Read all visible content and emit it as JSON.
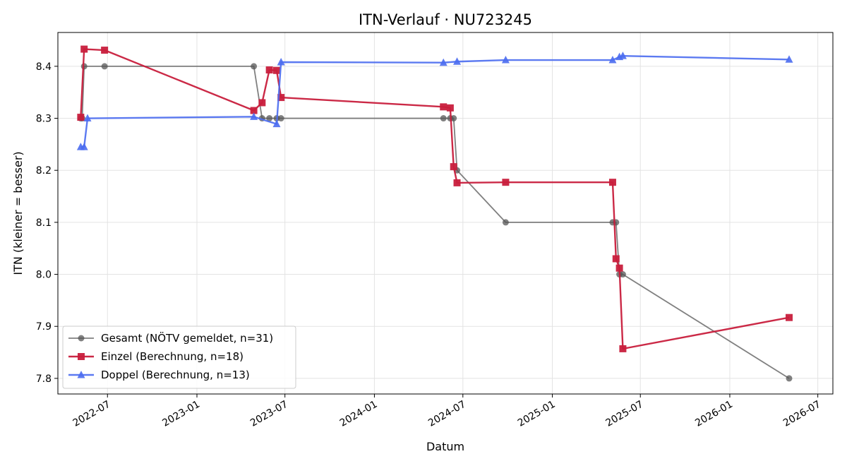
{
  "chart_data": {
    "type": "line",
    "title": "ITN-Verlauf · NU723245",
    "xlabel": "Datum",
    "ylabel": "ITN  (kleiner = besser)",
    "xlim": [
      "2022-03-21",
      "2026-08-01"
    ],
    "ylim": [
      7.77,
      8.465
    ],
    "x_ticks": [
      "2022-07-01",
      "2023-01-01",
      "2023-07-01",
      "2024-01-01",
      "2024-07-01",
      "2025-01-01",
      "2025-07-01",
      "2026-01-01",
      "2026-07-01"
    ],
    "x_tick_labels": [
      "2022-07",
      "2023-01",
      "2023-07",
      "2024-01",
      "2024-07",
      "2025-01",
      "2025-07",
      "2026-01",
      "2026-07"
    ],
    "y_ticks": [
      7.8,
      7.9,
      8.0,
      8.1,
      8.2,
      8.3,
      8.4
    ],
    "y_tick_labels": [
      "7.8",
      "7.9",
      "8.0",
      "8.1",
      "8.2",
      "8.3",
      "8.4"
    ],
    "grid": true,
    "legend_position": "lower-left",
    "series": [
      {
        "name": "Gesamt (NÖTV gemeldet, n=31)",
        "color": "#555555",
        "marker": "circle",
        "points": [
          [
            "2022-05-07",
            8.3
          ],
          [
            "2022-05-10",
            8.3
          ],
          [
            "2022-05-14",
            8.4
          ],
          [
            "2022-06-25",
            8.4
          ],
          [
            "2023-04-28",
            8.4
          ],
          [
            "2023-05-15",
            8.3
          ],
          [
            "2023-05-30",
            8.3
          ],
          [
            "2023-06-14",
            8.3
          ],
          [
            "2023-06-23",
            8.3
          ],
          [
            "2024-05-22",
            8.3
          ],
          [
            "2024-06-05",
            8.3
          ],
          [
            "2024-06-12",
            8.3
          ],
          [
            "2024-06-19",
            8.2
          ],
          [
            "2024-09-27",
            8.1
          ],
          [
            "2025-05-05",
            8.1
          ],
          [
            "2025-05-12",
            8.1
          ],
          [
            "2025-05-19",
            8.0
          ],
          [
            "2025-05-26",
            8.0
          ],
          [
            "2026-05-03",
            7.8
          ]
        ]
      },
      {
        "name": "Einzel (Berechnung, n=18)",
        "color": "#c81e3c",
        "marker": "square",
        "points": [
          [
            "2022-05-07",
            8.302
          ],
          [
            "2022-05-14",
            8.433
          ],
          [
            "2022-06-25",
            8.431
          ],
          [
            "2023-04-28",
            8.315
          ],
          [
            "2023-05-15",
            8.33
          ],
          [
            "2023-05-30",
            8.393
          ],
          [
            "2023-06-14",
            8.392
          ],
          [
            "2023-06-23",
            8.34
          ],
          [
            "2024-05-22",
            8.322
          ],
          [
            "2024-06-05",
            8.32
          ],
          [
            "2024-06-12",
            8.207
          ],
          [
            "2024-06-19",
            8.176
          ],
          [
            "2024-09-27",
            8.177
          ],
          [
            "2025-05-05",
            8.177
          ],
          [
            "2025-05-12",
            8.03
          ],
          [
            "2025-05-19",
            8.012
          ],
          [
            "2025-05-26",
            7.857
          ],
          [
            "2026-05-03",
            7.917
          ]
        ]
      },
      {
        "name": "Doppel (Berechnung, n=13)",
        "color": "#4a6cf0",
        "marker": "triangle",
        "points": [
          [
            "2022-05-07",
            8.245
          ],
          [
            "2022-05-14",
            8.245
          ],
          [
            "2022-05-21",
            8.3
          ],
          [
            "2023-04-28",
            8.303
          ],
          [
            "2023-06-14",
            8.289
          ],
          [
            "2023-06-23",
            8.408
          ],
          [
            "2024-05-22",
            8.407
          ],
          [
            "2024-06-19",
            8.409
          ],
          [
            "2024-09-27",
            8.412
          ],
          [
            "2025-05-05",
            8.412
          ],
          [
            "2025-05-19",
            8.418
          ],
          [
            "2025-05-26",
            8.42
          ],
          [
            "2026-05-03",
            8.413
          ]
        ]
      }
    ]
  }
}
